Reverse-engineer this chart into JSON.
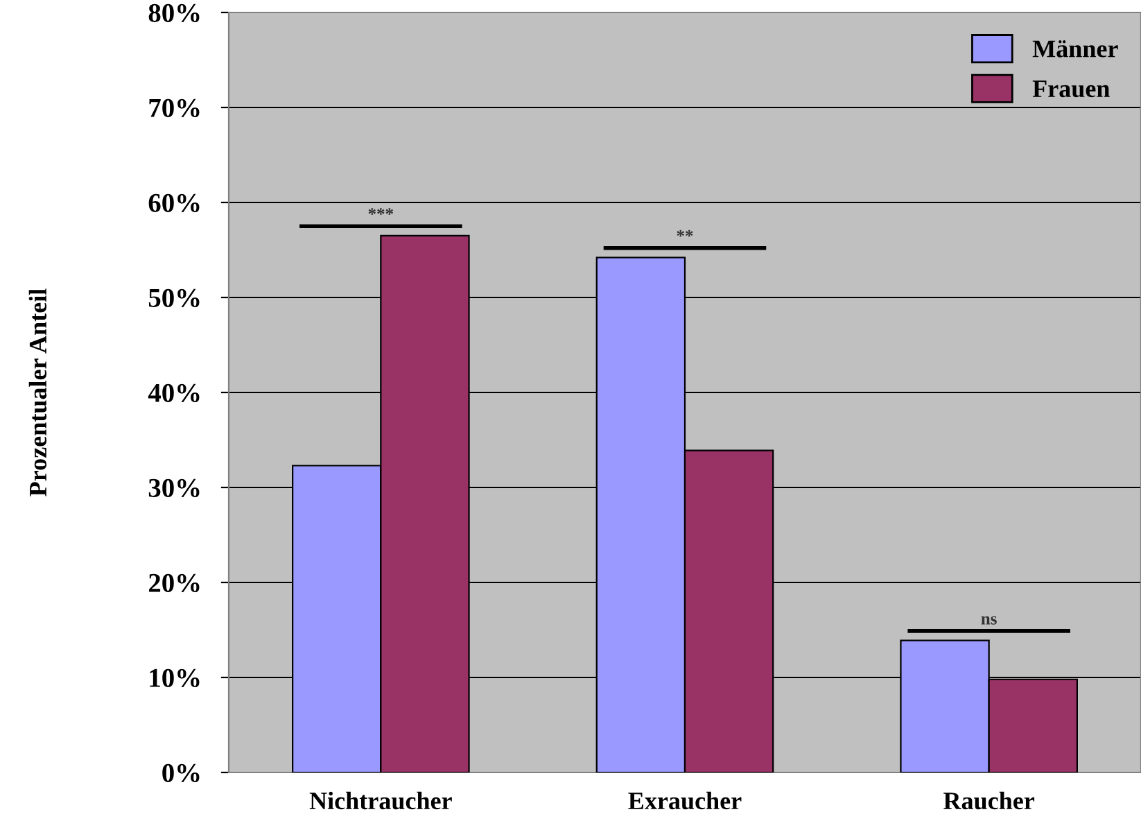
{
  "chart_data": {
    "type": "bar",
    "ylabel": "Prozentualer Anteil",
    "categories": [
      "Nichtraucher",
      "Exraucher",
      "Raucher"
    ],
    "series": [
      {
        "name": "Männer",
        "color": "#9999ff",
        "values": [
          32.3,
          54.2,
          13.9
        ]
      },
      {
        "name": "Frauen",
        "color": "#993366",
        "values": [
          56.5,
          33.9,
          9.8
        ]
      }
    ],
    "ylim": [
      0,
      80
    ],
    "yticks": [
      {
        "value": 0,
        "label": "0%"
      },
      {
        "value": 10,
        "label": "10%"
      },
      {
        "value": 20,
        "label": "20%"
      },
      {
        "value": 30,
        "label": "30%"
      },
      {
        "value": 40,
        "label": "40%"
      },
      {
        "value": 50,
        "label": "50%"
      },
      {
        "value": 60,
        "label": "60%"
      },
      {
        "value": 70,
        "label": "70%"
      },
      {
        "value": 80,
        "label": "80%"
      }
    ],
    "grid": "y",
    "legend": "top right",
    "annotations": [
      "***",
      "**",
      "ns"
    ]
  }
}
